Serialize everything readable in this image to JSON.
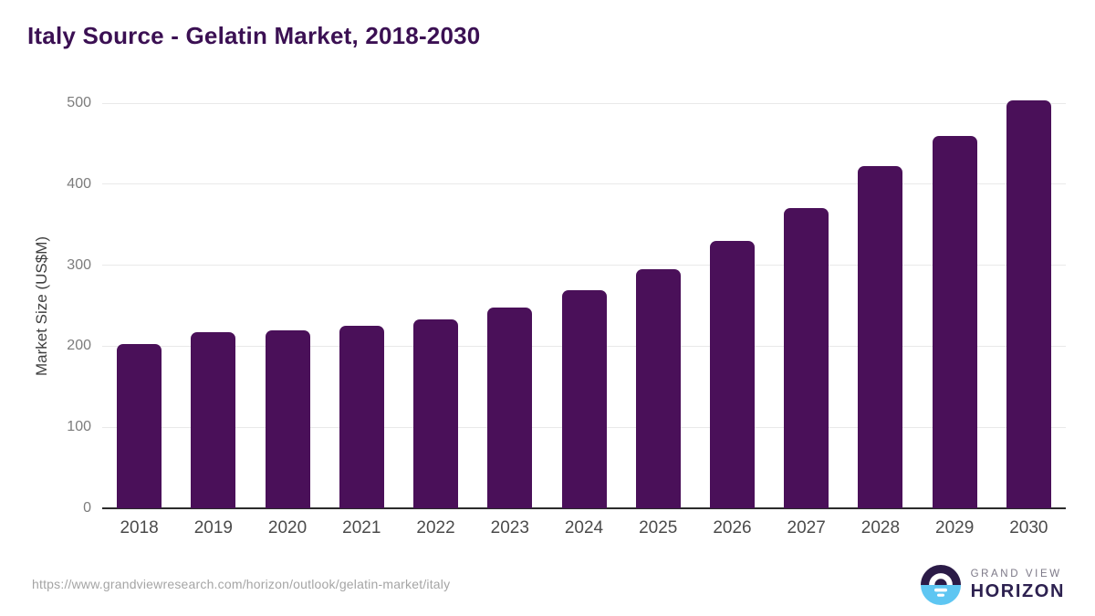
{
  "chart": {
    "title": "Italy Source - Gelatin Market, 2018-2030",
    "y_axis_title": "Market Size (US$M)"
  },
  "chart_data": {
    "type": "bar",
    "title": "Italy Source - Gelatin Market, 2018-2030",
    "categories": [
      "2018",
      "2019",
      "2020",
      "2021",
      "2022",
      "2023",
      "2024",
      "2025",
      "2026",
      "2027",
      "2028",
      "2029",
      "2030"
    ],
    "values": [
      203,
      217,
      220,
      225,
      233,
      248,
      269,
      295,
      330,
      371,
      422,
      460,
      503
    ],
    "series_name": "Market Size (US$M)",
    "xlabel": "",
    "ylabel": "Market Size (US$M)",
    "ylim": [
      0,
      500
    ],
    "yticks": [
      0,
      100,
      200,
      300,
      400,
      500
    ],
    "grid": "horizontal-only",
    "legend": "none",
    "data_labels": "none"
  },
  "footer": {
    "source_url": "https://www.grandviewresearch.com/horizon/outlook/gelatin-market/italy",
    "logo": {
      "line1": "GRAND VIEW",
      "line2": "HORIZON"
    }
  },
  "colors": {
    "background": "#ffffff",
    "bar": "#4a1059",
    "title": "#3b1053",
    "grid": "#e9e9e9",
    "axis": "#2b2b2b",
    "y_tick_text": "#7c7c7c",
    "x_tick_text": "#4b4b4b",
    "url_text": "#a5a5a5",
    "logo_dark_half": "#2b1b47",
    "logo_blue_half": "#5ec6f2",
    "logo_text_gray": "#7c7887",
    "logo_text_dark": "#2d2150"
  }
}
